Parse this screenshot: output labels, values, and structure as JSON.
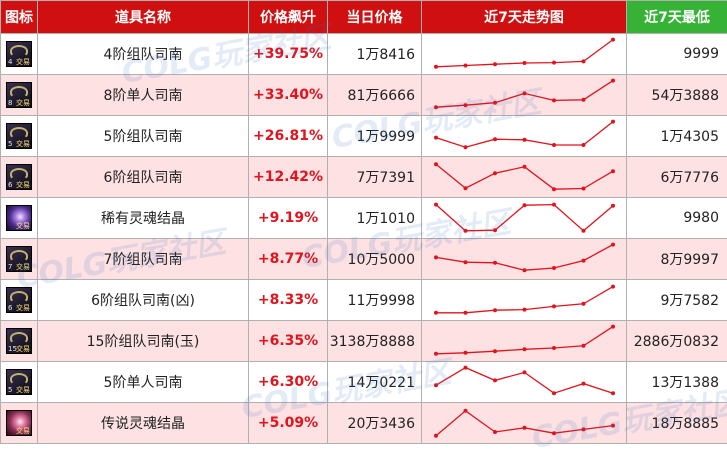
{
  "header": {
    "icon": "图标",
    "name": "道具名称",
    "rise": "价格飙升",
    "price": "当日价格",
    "trend": "近7天走势图",
    "min": "近7天最低"
  },
  "badge_trade": "交易",
  "watermark": "COLG玩家社区",
  "colors": {
    "header_red": "#d01010",
    "header_green": "#36b236",
    "rise_red": "#e0141c",
    "row_pink": "#fde1e3",
    "trend_line": "#e0141c"
  },
  "rows": [
    {
      "icon": "sinan-icon",
      "level": "4",
      "name": "4阶组队司南",
      "rise": "+39.75%",
      "price": "1万8416",
      "min": "9999",
      "trend": [
        0.1,
        0.14,
        0.18,
        0.22,
        0.23,
        0.27,
        0.95
      ]
    },
    {
      "icon": "sinan-icon",
      "level": "8",
      "name": "8阶单人司南",
      "rise": "+33.40%",
      "price": "81万6666",
      "min": "54万3888",
      "trend": [
        0.12,
        0.18,
        0.26,
        0.55,
        0.33,
        0.35,
        0.95
      ]
    },
    {
      "icon": "sinan-icon",
      "level": "5",
      "name": "5阶组队司南",
      "rise": "+26.81%",
      "price": "1万9999",
      "min": "1万4305",
      "trend": [
        0.45,
        0.15,
        0.4,
        0.38,
        0.22,
        0.22,
        0.95
      ]
    },
    {
      "icon": "sinan-icon",
      "level": "6",
      "name": "6阶组队司南",
      "rise": "+12.42%",
      "price": "7万7391",
      "min": "6万7776",
      "trend": [
        0.9,
        0.15,
        0.62,
        0.82,
        0.12,
        0.14,
        0.68
      ]
    },
    {
      "icon": "crystal-icon",
      "level": "",
      "name": "稀有灵魂结晶",
      "rise": "+9.19%",
      "price": "1万1010",
      "min": "9980",
      "trend": [
        0.92,
        0.1,
        0.12,
        0.9,
        0.92,
        0.1,
        0.88
      ]
    },
    {
      "icon": "sinan-icon",
      "level": "7",
      "name": "7阶组队司南",
      "rise": "+8.77%",
      "price": "10万5000",
      "min": "8万9997",
      "trend": [
        0.55,
        0.4,
        0.38,
        0.15,
        0.22,
        0.45,
        0.95
      ]
    },
    {
      "icon": "sinan-icon",
      "level": "6",
      "name": "6阶组队司南(凶)",
      "rise": "+8.33%",
      "price": "11万9998",
      "min": "9万7582",
      "trend": [
        0.1,
        0.1,
        0.18,
        0.2,
        0.3,
        0.38,
        0.92
      ]
    },
    {
      "icon": "sinan-icon",
      "level": "15",
      "name": "15阶组队司南(玉)",
      "rise": "+6.35%",
      "price": "3138万8888",
      "min": "2886万0832",
      "trend": [
        0.1,
        0.13,
        0.18,
        0.24,
        0.28,
        0.35,
        0.95
      ]
    },
    {
      "icon": "sinan-icon",
      "level": "5",
      "name": "5阶单人司南",
      "rise": "+6.30%",
      "price": "14万0221",
      "min": "13万1388",
      "trend": [
        0.4,
        0.95,
        0.55,
        0.8,
        0.15,
        0.45,
        0.15
      ]
    },
    {
      "icon": "crystal-red-icon",
      "level": "",
      "name": "传说灵魂结晶",
      "rise": "+5.09%",
      "price": "20万3436",
      "min": "18万8885",
      "trend": [
        0.1,
        0.88,
        0.22,
        0.35,
        0.18,
        0.3,
        0.42
      ]
    }
  ]
}
